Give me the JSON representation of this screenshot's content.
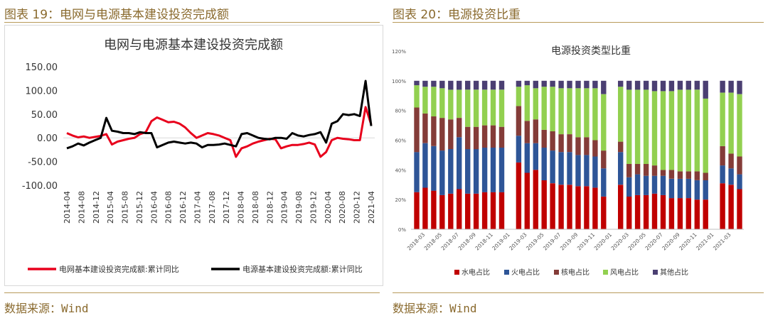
{
  "left": {
    "figure_title": "图表 19：电网与电源基本建设投资完成额",
    "source": "数据来源：Wind"
  },
  "right": {
    "figure_title": "图表 20：电源投资比重",
    "source": "数据来源：Wind"
  },
  "colors": {
    "grid_red": "#e8001c",
    "power_black": "#000000",
    "hydro": "#c00000",
    "thermal": "#2e5597",
    "nuclear": "#843c38",
    "wind": "#92d050",
    "other": "#4b3f72",
    "accent": "#8a6a2e"
  },
  "chart_data": [
    {
      "type": "line",
      "title": "电网与电源基本建设投资完成额",
      "ylim": [
        -100,
        150
      ],
      "y_ticks": [
        "150.00",
        "100.00",
        "50.00",
        "0.00",
        "-50.00",
        "-100.00"
      ],
      "x_tick_labels": [
        "2014-04",
        "2014-08",
        "2014-12",
        "2015-04",
        "2015-08",
        "2015-12",
        "2016-04",
        "2016-08",
        "2016-12",
        "2017-04",
        "2017-08",
        "2017-12",
        "2018-04",
        "2018-08",
        "2018-12",
        "2019-04",
        "2019-08",
        "2019-12",
        "2020-04",
        "2020-08",
        "2020-12",
        "2021-04"
      ],
      "legend_position": "bottom",
      "series": [
        {
          "name": "电网基本建设投资完成额:累计同比",
          "color": "#e8001c",
          "values": [
            10,
            5,
            1,
            3,
            0,
            2,
            4,
            8,
            -14,
            -8,
            -5,
            -2,
            0,
            8,
            12,
            35,
            43,
            38,
            33,
            34,
            30,
            22,
            10,
            0,
            5,
            10,
            8,
            5,
            0,
            -5,
            -40,
            -22,
            -18,
            -12,
            -8,
            -5,
            -2,
            -3,
            -22,
            -18,
            -15,
            -15,
            -13,
            -10,
            -14,
            -40,
            -30,
            -5,
            0,
            -2,
            -3,
            -5,
            -5,
            65,
            28
          ]
        },
        {
          "name": "电源基本建设投资完成额:累计同比",
          "color": "#000000",
          "values": [
            -22,
            -18,
            -12,
            -16,
            -10,
            -5,
            0,
            42,
            15,
            13,
            10,
            10,
            8,
            12,
            10,
            10,
            -20,
            -15,
            -10,
            -8,
            -10,
            -12,
            -10,
            -12,
            -20,
            -15,
            -15,
            -14,
            -12,
            -15,
            -18,
            8,
            10,
            5,
            0,
            -2,
            -3,
            0,
            0,
            -2,
            10,
            5,
            3,
            6,
            8,
            12,
            -10,
            30,
            35,
            50,
            48,
            50,
            46,
            120,
            25
          ]
        }
      ]
    },
    {
      "type": "bar",
      "stacked": true,
      "title": "电源投资类型比重",
      "ylim": [
        0,
        1.2
      ],
      "y_ticks": [
        "0%",
        "20%",
        "40%",
        "60%",
        "80%",
        "100%",
        "120%"
      ],
      "x_tick_labels": [
        "2018-03",
        "2018-05",
        "2018-07",
        "2018-09",
        "2018-11",
        "2019-01",
        "2019-03",
        "2019-05",
        "2019-07",
        "2019-09",
        "2019-11",
        "2020-01",
        "2020-03",
        "2020-05",
        "2020-07",
        "2020-09",
        "2020-11",
        "2021-01",
        "2021-03"
      ],
      "legend_position": "bottom",
      "categories": [
        "2018-02",
        "2018-03",
        "2018-04",
        "2018-05",
        "2018-06",
        "2018-07",
        "2018-08",
        "2018-09",
        "2018-10",
        "2018-11",
        "2018-12",
        "2019-01",
        "2019-02",
        "2019-03",
        "2019-04",
        "2019-05",
        "2019-06",
        "2019-07",
        "2019-08",
        "2019-09",
        "2019-10",
        "2019-11",
        "2019-12",
        "2020-01",
        "2020-02",
        "2020-03",
        "2020-04",
        "2020-05",
        "2020-06",
        "2020-07",
        "2020-08",
        "2020-09",
        "2020-10",
        "2020-11",
        "2020-12",
        "2021-01",
        "2021-02",
        "2021-03",
        "2021-04"
      ],
      "series": [
        {
          "name": "水电占比",
          "color": "#c00000",
          "values": [
            0.25,
            0.28,
            0.26,
            0.23,
            0.24,
            0.27,
            0.24,
            0.24,
            0.25,
            0.25,
            0.25,
            null,
            0.45,
            0.38,
            0.4,
            0.33,
            0.31,
            0.3,
            0.3,
            0.29,
            0.29,
            0.28,
            0.22,
            null,
            0.3,
            0.22,
            0.23,
            0.23,
            0.24,
            0.23,
            0.21,
            0.21,
            0.21,
            0.2,
            0.2,
            null,
            0.31,
            0.3,
            0.27
          ]
        },
        {
          "name": "火电占比",
          "color": "#2e5597",
          "values": [
            0.27,
            0.3,
            0.3,
            0.3,
            0.3,
            0.35,
            0.3,
            0.3,
            0.3,
            0.3,
            0.3,
            null,
            0.18,
            0.2,
            0.18,
            0.22,
            0.22,
            0.22,
            0.22,
            0.21,
            0.21,
            0.21,
            0.19,
            null,
            0.22,
            0.13,
            0.14,
            0.13,
            0.12,
            0.13,
            0.13,
            0.13,
            0.13,
            0.13,
            0.13,
            null,
            0.12,
            0.11,
            0.1
          ]
        },
        {
          "name": "核电占比",
          "color": "#843c38",
          "values": [
            0.3,
            0.2,
            0.2,
            0.22,
            0.2,
            0.13,
            0.15,
            0.15,
            0.15,
            0.15,
            0.14,
            null,
            0.2,
            0.15,
            0.16,
            0.12,
            0.13,
            0.12,
            0.12,
            0.12,
            0.12,
            0.11,
            0.12,
            null,
            0.07,
            0.09,
            0.07,
            0.08,
            0.07,
            0.04,
            0.06,
            0.05,
            0.05,
            0.06,
            0.05,
            null,
            0.13,
            0.1,
            0.12
          ]
        },
        {
          "name": "风电占比",
          "color": "#92d050",
          "values": [
            0.15,
            0.18,
            0.2,
            0.2,
            0.2,
            0.19,
            0.25,
            0.25,
            0.24,
            0.24,
            0.25,
            null,
            0.13,
            0.24,
            0.21,
            0.29,
            0.3,
            0.31,
            0.31,
            0.33,
            0.33,
            0.35,
            0.38,
            null,
            0.37,
            0.5,
            0.5,
            0.5,
            0.5,
            0.53,
            0.53,
            0.55,
            0.55,
            0.55,
            0.5,
            null,
            0.36,
            0.41,
            0.42
          ]
        },
        {
          "name": "其他占比",
          "color": "#4b3f72",
          "values": [
            0.03,
            0.04,
            0.04,
            0.05,
            0.06,
            0.06,
            0.06,
            0.06,
            0.06,
            0.06,
            0.06,
            null,
            0.04,
            0.03,
            0.05,
            0.04,
            0.04,
            0.05,
            0.05,
            0.05,
            0.05,
            0.05,
            0.09,
            null,
            0.04,
            0.06,
            0.06,
            0.06,
            0.07,
            0.07,
            0.07,
            0.06,
            0.06,
            0.06,
            0.12,
            null,
            0.08,
            0.08,
            0.09
          ]
        }
      ]
    }
  ]
}
